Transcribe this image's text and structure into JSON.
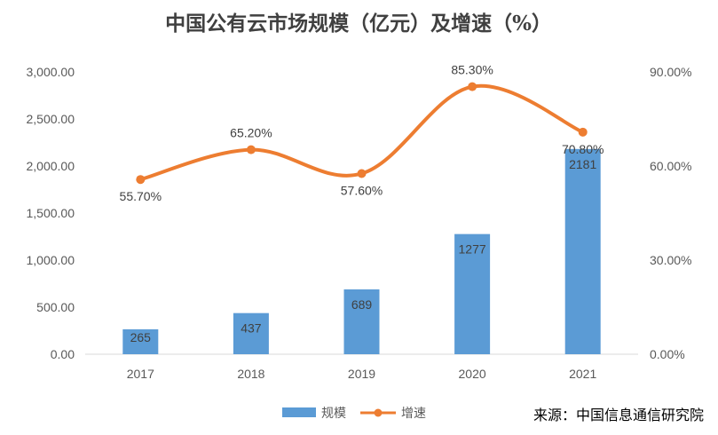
{
  "chart_data": {
    "type": "bar",
    "title": "中国公有云市场规模（亿元）及增速（%）",
    "categories": [
      "2017",
      "2018",
      "2019",
      "2020",
      "2021"
    ],
    "series": [
      {
        "name": "规模",
        "type": "bar",
        "axis": "left",
        "values": [
          265,
          437,
          689,
          1277,
          2181
        ],
        "labels": [
          "265",
          "437",
          "689",
          "1277",
          "2181"
        ]
      },
      {
        "name": "增速",
        "type": "line",
        "axis": "right",
        "values": [
          55.7,
          65.2,
          57.6,
          85.3,
          70.8
        ],
        "labels": [
          "55.70%",
          "65.20%",
          "57.60%",
          "85.30%",
          "70.80%"
        ]
      }
    ],
    "y_left": {
      "lim": [
        0,
        3000
      ],
      "ticks": [
        "0.00",
        "500.00",
        "1,000.00",
        "1,500.00",
        "2,000.00",
        "2,500.00",
        "3,000.00"
      ]
    },
    "y_right": {
      "lim": [
        0,
        90
      ],
      "ticks": [
        "0.00%",
        "30.00%",
        "60.00%",
        "90.00%"
      ]
    },
    "grid": false,
    "legend_position": "bottom-center",
    "colors": {
      "bar": "#5B9BD5",
      "line": "#ED7D31",
      "axis": "#D9D9D9"
    },
    "source": "来源：中国信息通信研究院"
  }
}
